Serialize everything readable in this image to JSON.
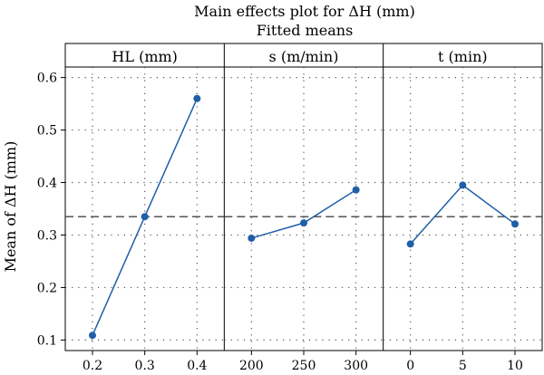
{
  "chart_data": {
    "type": "line",
    "title": "Main effects plot for ΔH (mm)",
    "subtitle": "Fitted means",
    "ylabel": "Mean of ΔH (mm)",
    "ylim": [
      0.08,
      0.62
    ],
    "yticks": [
      0.1,
      0.2,
      0.3,
      0.4,
      0.5,
      0.6
    ],
    "grid": true,
    "overall_mean": 0.335,
    "colors": {
      "series": "#1f5fa8",
      "mean_line": "#444444",
      "grid": "#555555",
      "frame": "#000000"
    },
    "panels": [
      {
        "name": "HL (mm)",
        "x": [
          "0.2",
          "0.3",
          "0.4"
        ],
        "values": [
          0.109,
          0.335,
          0.56
        ]
      },
      {
        "name": "s (m/min)",
        "x": [
          "200",
          "250",
          "300"
        ],
        "values": [
          0.294,
          0.323,
          0.386
        ]
      },
      {
        "name": "t (min)",
        "x": [
          "0",
          "5",
          "10"
        ],
        "values": [
          0.283,
          0.395,
          0.321
        ]
      }
    ]
  }
}
